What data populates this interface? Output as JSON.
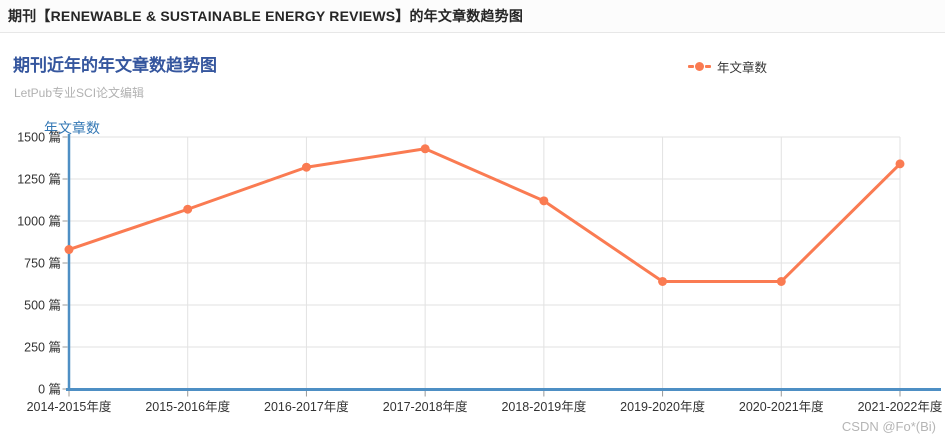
{
  "header": {
    "title": "期刊【RENEWABLE & SUSTAINABLE ENERGY REVIEWS】的年文章数趋势图"
  },
  "chart_header": {
    "title": "期刊近年的年文章数趋势图",
    "subtitle": "LetPub专业SCI论文编辑"
  },
  "legend": {
    "label": "年文章数"
  },
  "watermark": "CSDN @Fo*(Bi)",
  "colors": {
    "line": "#fa7b52",
    "axis": "#4e8fc4",
    "grid": "#e2e2e2",
    "tick": "#999999",
    "title": "#35569e",
    "subtitle": "#b1b1b1",
    "axis_name": "#3478b5",
    "tick_text": "#333333",
    "watermark": "#b5b5b5"
  },
  "chart_data": {
    "type": "line",
    "title": "期刊近年的年文章数趋势图",
    "categories": [
      "2014-2015年度",
      "2015-2016年度",
      "2016-2017年度",
      "2017-2018年度",
      "2018-2019年度",
      "2019-2020年度",
      "2020-2021年度",
      "2021-2022年度"
    ],
    "series": [
      {
        "name": "年文章数",
        "values": [
          830,
          1070,
          1320,
          1430,
          1120,
          640,
          640,
          1340
        ]
      }
    ],
    "xlabel": "",
    "ylabel": "年文章数",
    "ylim": [
      0,
      1500
    ],
    "y_ticks": [
      0,
      250,
      500,
      750,
      1000,
      1250,
      1500
    ],
    "y_tick_suffix": "篇",
    "grid": true,
    "legend_position": "top-right"
  }
}
